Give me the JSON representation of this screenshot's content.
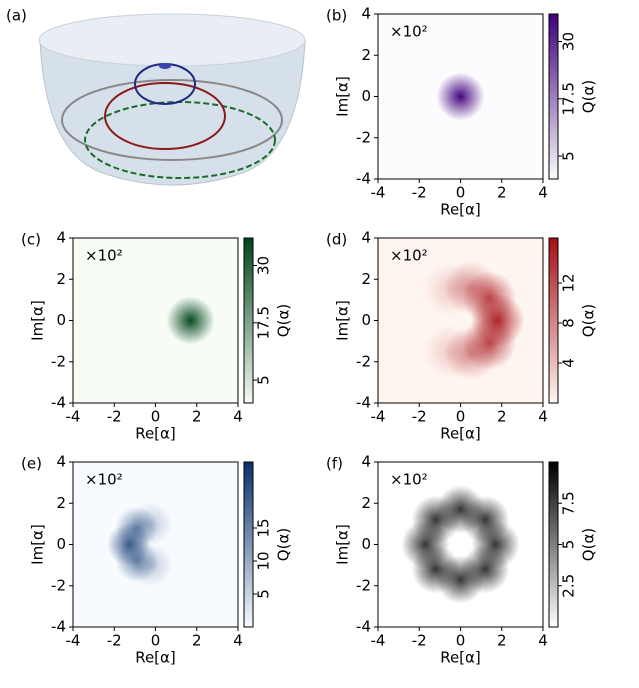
{
  "illustration": {
    "label": "(a)"
  },
  "chart_data": [
    {
      "type": "heatmap",
      "label": "(b)",
      "annotation": "×10²",
      "xlabel": "Re[α]",
      "ylabel": "Im[α]",
      "colorbar_label": "Q(α)",
      "xlim": [
        -4,
        4
      ],
      "ylim": [
        -4,
        4
      ],
      "xticks": [
        -4,
        -2,
        0,
        2,
        4
      ],
      "yticks": [
        -4,
        -2,
        0,
        2,
        4
      ],
      "clim": [
        0,
        36
      ],
      "cticks": [
        5,
        17.5,
        30
      ],
      "colors": [
        "#fcfbfd",
        "#3f007d"
      ],
      "features": [
        {
          "x": 0,
          "y": 0,
          "sigma": 0.45,
          "value": 35
        }
      ]
    },
    {
      "type": "heatmap",
      "label": "(c)",
      "annotation": "×10²",
      "xlabel": "Re[α]",
      "ylabel": "Im[α]",
      "colorbar_label": "Q(α)",
      "xlim": [
        -4,
        4
      ],
      "ylim": [
        -4,
        4
      ],
      "xticks": [
        -4,
        -2,
        0,
        2,
        4
      ],
      "yticks": [
        -4,
        -2,
        0,
        2,
        4
      ],
      "clim": [
        0,
        36
      ],
      "cticks": [
        5,
        17.5,
        30
      ],
      "colors": [
        "#f7fcf5",
        "#00441b"
      ],
      "features": [
        {
          "x": 1.7,
          "y": 0,
          "sigma": 0.45,
          "value": 35
        }
      ]
    },
    {
      "type": "heatmap",
      "label": "(d)",
      "annotation": "×10²",
      "xlabel": "Re[α]",
      "ylabel": "Im[α]",
      "colorbar_label": "Q(α)",
      "xlim": [
        -4,
        4
      ],
      "ylim": [
        -4,
        4
      ],
      "xticks": [
        -4,
        -2,
        0,
        2,
        4
      ],
      "yticks": [
        -4,
        -2,
        0,
        2,
        4
      ],
      "clim": [
        0,
        16.5
      ],
      "cticks": [
        4,
        8,
        12
      ],
      "colors": [
        "#fff5f0",
        "#a50f15"
      ],
      "features": [
        {
          "x": 1.8,
          "y": 0,
          "sigma": 0.5,
          "value": 15
        },
        {
          "x": 1.4,
          "y": 1.1,
          "sigma": 0.5,
          "value": 12
        },
        {
          "x": 1.4,
          "y": -1.1,
          "sigma": 0.5,
          "value": 12
        },
        {
          "x": 0.5,
          "y": 1.6,
          "sigma": 0.5,
          "value": 7
        },
        {
          "x": 0.5,
          "y": -1.6,
          "sigma": 0.5,
          "value": 7
        },
        {
          "x": -0.5,
          "y": 1.5,
          "sigma": 0.5,
          "value": 3
        },
        {
          "x": -0.5,
          "y": -1.5,
          "sigma": 0.5,
          "value": 3
        }
      ]
    },
    {
      "type": "heatmap",
      "label": "(e)",
      "annotation": "×10²",
      "xlabel": "Re[α]",
      "ylabel": "Im[α]",
      "colorbar_label": "Q(α)",
      "xlim": [
        -4,
        4
      ],
      "ylim": [
        -4,
        4
      ],
      "xticks": [
        -4,
        -2,
        0,
        2,
        4
      ],
      "yticks": [
        -4,
        -2,
        0,
        2,
        4
      ],
      "clim": [
        0,
        25
      ],
      "cticks": [
        5,
        10,
        15
      ],
      "colors": [
        "#f7fbff",
        "#08306b"
      ],
      "features": [
        {
          "x": -1.3,
          "y": 0,
          "sigma": 0.4,
          "value": 19
        },
        {
          "x": -0.9,
          "y": 0.8,
          "sigma": 0.4,
          "value": 14
        },
        {
          "x": -0.9,
          "y": -0.8,
          "sigma": 0.4,
          "value": 14
        },
        {
          "x": -0.2,
          "y": 1.0,
          "sigma": 0.4,
          "value": 6
        },
        {
          "x": -0.2,
          "y": -1.0,
          "sigma": 0.4,
          "value": 6
        }
      ]
    },
    {
      "type": "heatmap",
      "label": "(f)",
      "annotation": "×10²",
      "xlabel": "Re[α]",
      "ylabel": "Im[α]",
      "colorbar_label": "Q(α)",
      "xlim": [
        -4,
        4
      ],
      "ylim": [
        -4,
        4
      ],
      "xticks": [
        -4,
        -2,
        0,
        2,
        4
      ],
      "yticks": [
        -4,
        -2,
        0,
        2,
        4
      ],
      "clim": [
        0,
        10
      ],
      "cticks": [
        2.5,
        5,
        7.5
      ],
      "colors": [
        "#ffffff",
        "#000000"
      ],
      "features": [
        {
          "x": 1.7,
          "y": 0,
          "sigma": 0.45,
          "value": 8
        },
        {
          "x": 1.2,
          "y": 1.2,
          "sigma": 0.45,
          "value": 8
        },
        {
          "x": 0,
          "y": 1.7,
          "sigma": 0.45,
          "value": 8
        },
        {
          "x": -1.2,
          "y": 1.2,
          "sigma": 0.45,
          "value": 8
        },
        {
          "x": -1.7,
          "y": 0,
          "sigma": 0.45,
          "value": 8
        },
        {
          "x": -1.2,
          "y": -1.2,
          "sigma": 0.45,
          "value": 8
        },
        {
          "x": 0,
          "y": -1.7,
          "sigma": 0.45,
          "value": 8
        },
        {
          "x": 1.2,
          "y": -1.2,
          "sigma": 0.45,
          "value": 8
        }
      ]
    }
  ]
}
